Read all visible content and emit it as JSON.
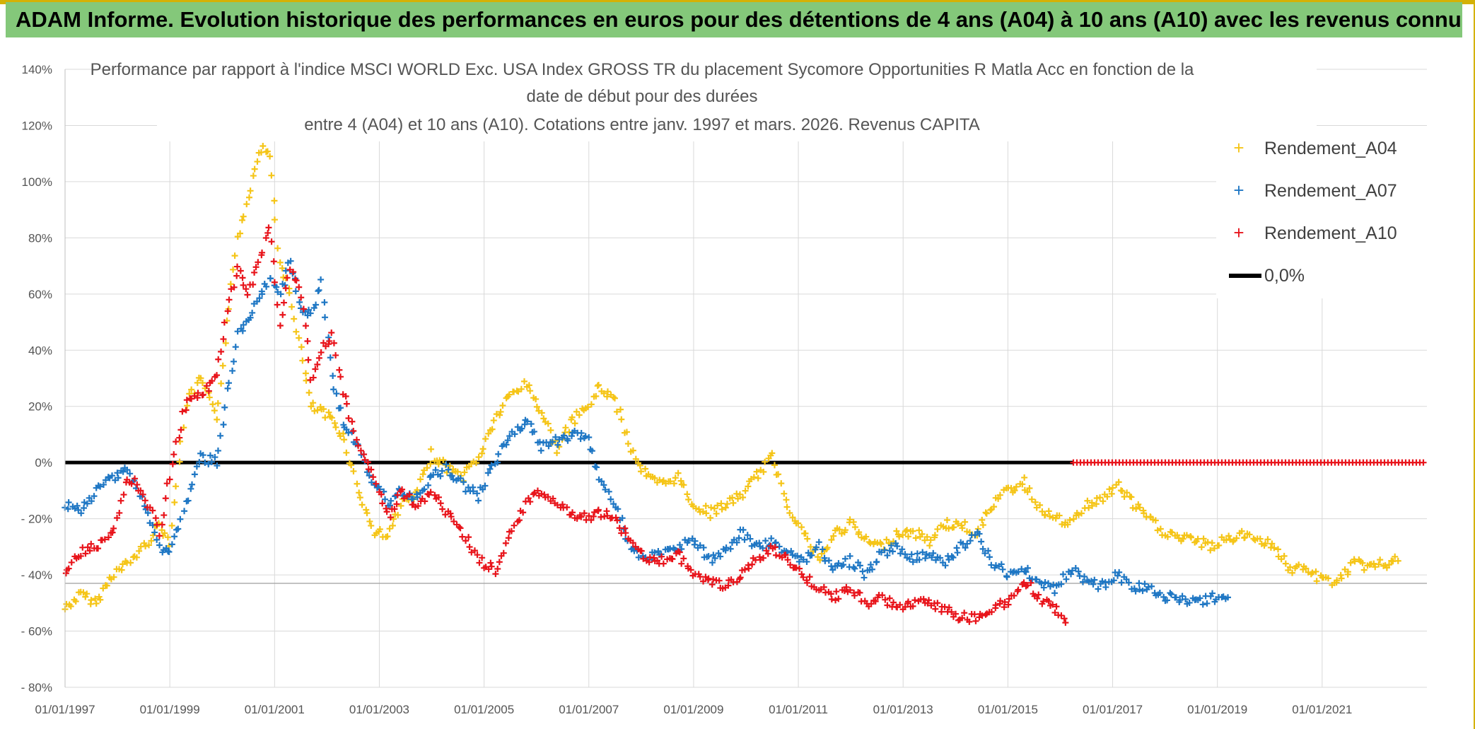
{
  "header": {
    "banner": "ADAM Informe. Evolution historique des performances en euros pour des détentions de 4 ans (A04) à 10 ans (A10) avec les revenus connus capitalisés"
  },
  "colors": {
    "banner_bg": "#84c87a",
    "a04": "#f5c518",
    "a07": "#1f77c4",
    "a10": "#e8141b",
    "zero": "#000000"
  },
  "chart_data": {
    "type": "scatter",
    "title_lines": [
      "Performance par rapport à l'indice MSCI WORLD Exc. USA Index GROSS TR  du placement Sycomore Opportunities R Matla Acc en fonction de la",
      "date de début pour des durées",
      "entre 4 (A04) et 10 ans (A10). Cotations entre janv. 1997 et mars. 2026. Revenus CAPITA"
    ],
    "ylim": [
      -80,
      140
    ],
    "y_ticks": [
      {
        "value": 140,
        "label": "140%"
      },
      {
        "value": 120,
        "label": "120%"
      },
      {
        "value": 100,
        "label": "100%"
      },
      {
        "value": 80,
        "label": "80%"
      },
      {
        "value": 60,
        "label": "60%"
      },
      {
        "value": 40,
        "label": "40%"
      },
      {
        "value": 20,
        "label": "20%"
      },
      {
        "value": 0,
        "label": "0%"
      },
      {
        "value": -20,
        "label": "- 20%"
      },
      {
        "value": -40,
        "label": "- 40%"
      },
      {
        "value": -60,
        "label": "- 60%"
      },
      {
        "value": -80,
        "label": "- 80%"
      }
    ],
    "xlim": [
      1997.0,
      2023.0
    ],
    "x_ticks": [
      {
        "value": 1997,
        "label": "01/01/1997"
      },
      {
        "value": 1999,
        "label": "01/01/1999"
      },
      {
        "value": 2001,
        "label": "01/01/2001"
      },
      {
        "value": 2003,
        "label": "01/01/2003"
      },
      {
        "value": 2005,
        "label": "01/01/2005"
      },
      {
        "value": 2007,
        "label": "01/01/2007"
      },
      {
        "value": 2009,
        "label": "01/01/2009"
      },
      {
        "value": 2011,
        "label": "01/01/2011"
      },
      {
        "value": 2013,
        "label": "01/01/2013"
      },
      {
        "value": 2015,
        "label": "01/01/2015"
      },
      {
        "value": 2017,
        "label": "01/01/2017"
      },
      {
        "value": 2019,
        "label": "01/01/2019"
      },
      {
        "value": 2021,
        "label": "01/01/2021"
      }
    ],
    "series": [
      {
        "name": "Rendement_A04",
        "marker": "+",
        "x": [
          1997.0,
          1997.3,
          1997.6,
          1997.9,
          1998.2,
          1998.5,
          1998.8,
          1999.0,
          1999.3,
          1999.6,
          1999.9,
          2000.1,
          2000.3,
          2000.5,
          2000.7,
          2000.9,
          2001.1,
          2001.3,
          2001.5,
          2001.7,
          2001.9,
          2002.1,
          2002.3,
          2002.6,
          2002.9,
          2003.2,
          2003.4,
          2003.7,
          2004.0,
          2004.3,
          2004.6,
          2004.9,
          2005.2,
          2005.5,
          2005.8,
          2006.1,
          2006.4,
          2006.7,
          2007.0,
          2007.2,
          2007.5,
          2007.8,
          2008.1,
          2008.4,
          2008.7,
          2009.0,
          2009.3,
          2009.6,
          2009.9,
          2010.2,
          2010.5,
          2010.8,
          2011.1,
          2011.4,
          2011.7,
          2012.0,
          2012.3,
          2012.6,
          2012.9,
          2013.2,
          2013.5,
          2013.8,
          2014.1,
          2014.4,
          2014.7,
          2015.0,
          2015.3,
          2015.6,
          2015.9,
          2016.2,
          2016.5,
          2016.8,
          2017.1,
          2017.4,
          2017.7,
          2018.0,
          2018.3,
          2018.6,
          2018.9,
          2019.2,
          2019.5,
          2019.8,
          2020.1,
          2020.4,
          2020.7,
          2021.0,
          2021.3,
          2021.6,
          2021.9,
          2022.2,
          2022.45
        ],
        "values": [
          -52,
          -47,
          -50,
          -40,
          -36,
          -30,
          -22,
          -28,
          20,
          30,
          15,
          50,
          80,
          95,
          112,
          110,
          70,
          60,
          40,
          20,
          18,
          15,
          10,
          -10,
          -25,
          -25,
          -15,
          -12,
          3,
          -2,
          -5,
          2,
          15,
          24,
          28,
          18,
          5,
          15,
          20,
          27,
          22,
          5,
          -5,
          -8,
          -5,
          -15,
          -18,
          -15,
          -12,
          -5,
          2,
          -15,
          -25,
          -35,
          -25,
          -22,
          -28,
          -30,
          -25,
          -25,
          -28,
          -22,
          -22,
          -25,
          -15,
          -10,
          -7,
          -16,
          -20,
          -22,
          -15,
          -13,
          -8,
          -15,
          -20,
          -25,
          -27,
          -28,
          -30,
          -27,
          -26,
          -27,
          -30,
          -38,
          -38,
          -42,
          -42,
          -36,
          -37,
          -36,
          -35
        ]
      },
      {
        "name": "Rendement_A07",
        "marker": "+",
        "x": [
          1997.0,
          1997.3,
          1997.6,
          1997.9,
          1998.2,
          1998.5,
          1998.8,
          1999.0,
          1999.3,
          1999.6,
          1999.9,
          2000.1,
          2000.3,
          2000.5,
          2000.7,
          2000.9,
          2001.1,
          2001.3,
          2001.5,
          2001.7,
          2001.9,
          2002.1,
          2002.3,
          2002.6,
          2002.9,
          2003.2,
          2003.4,
          2003.7,
          2004.0,
          2004.3,
          2004.6,
          2004.9,
          2005.2,
          2005.5,
          2005.8,
          2006.1,
          2006.4,
          2006.7,
          2007.0,
          2007.2,
          2007.5,
          2007.8,
          2008.1,
          2008.4,
          2008.7,
          2009.0,
          2009.3,
          2009.6,
          2009.9,
          2010.2,
          2010.5,
          2010.8,
          2011.1,
          2011.4,
          2011.7,
          2012.0,
          2012.3,
          2012.6,
          2012.9,
          2013.2,
          2013.5,
          2013.8,
          2014.1,
          2014.4,
          2014.7,
          2015.0,
          2015.3,
          2015.6,
          2015.9,
          2016.2,
          2016.5,
          2016.8,
          2017.1,
          2017.4,
          2017.7,
          2018.0,
          2018.3,
          2018.6,
          2018.9,
          2019.2
        ],
        "values": [
          -15,
          -18,
          -10,
          -5,
          -2,
          -15,
          -30,
          -32,
          -15,
          2,
          0,
          25,
          45,
          50,
          58,
          65,
          60,
          72,
          55,
          52,
          65,
          30,
          15,
          5,
          -8,
          -15,
          -10,
          -12,
          -5,
          -2,
          -8,
          -12,
          0,
          10,
          15,
          5,
          8,
          10,
          8,
          -5,
          -15,
          -30,
          -35,
          -32,
          -30,
          -28,
          -35,
          -32,
          -25,
          -30,
          -28,
          -32,
          -35,
          -30,
          -38,
          -35,
          -40,
          -32,
          -30,
          -35,
          -32,
          -35,
          -30,
          -25,
          -35,
          -40,
          -38,
          -42,
          -45,
          -38,
          -42,
          -44,
          -40,
          -44,
          -45,
          -48,
          -48,
          -50,
          -48,
          -48
        ]
      },
      {
        "name": "Rendement_A10",
        "marker": "+",
        "x": [
          1997.0,
          1997.3,
          1997.6,
          1997.9,
          1998.2,
          1998.5,
          1998.8,
          1999.0,
          1999.3,
          1999.6,
          1999.9,
          2000.1,
          2000.3,
          2000.5,
          2000.7,
          2000.9,
          2001.1,
          2001.3,
          2001.5,
          2001.7,
          2001.9,
          2002.1,
          2002.3,
          2002.6,
          2002.9,
          2003.2,
          2003.4,
          2003.7,
          2004.0,
          2004.3,
          2004.6,
          2004.9,
          2005.2,
          2005.5,
          2005.8,
          2006.1,
          2006.4,
          2006.7,
          2007.0,
          2007.2,
          2007.5,
          2007.8,
          2008.1,
          2008.4,
          2008.7,
          2009.0,
          2009.3,
          2009.6,
          2009.9,
          2010.2,
          2010.5,
          2010.8,
          2011.1,
          2011.4,
          2011.7,
          2012.0,
          2012.3,
          2012.6,
          2012.9,
          2013.2,
          2013.5,
          2013.8,
          2014.1,
          2014.4,
          2014.7,
          2015.0,
          2015.3,
          2015.6,
          2015.9,
          2016.1
        ],
        "values": [
          -38,
          -32,
          -30,
          -25,
          -5,
          -10,
          -25,
          -5,
          20,
          25,
          30,
          55,
          70,
          60,
          70,
          85,
          50,
          70,
          60,
          30,
          40,
          45,
          25,
          5,
          -5,
          -20,
          -10,
          -15,
          -10,
          -18,
          -25,
          -35,
          -38,
          -25,
          -15,
          -10,
          -15,
          -18,
          -20,
          -18,
          -20,
          -28,
          -35,
          -35,
          -32,
          -40,
          -42,
          -45,
          -40,
          -35,
          -30,
          -35,
          -40,
          -45,
          -48,
          -45,
          -50,
          -48,
          -52,
          -50,
          -50,
          -52,
          -55,
          -55,
          -52,
          -50,
          -42,
          -48,
          -52,
          -57
        ]
      },
      {
        "name": "Rendement_A10_zero_tail",
        "marker": "+",
        "x": [
          2016.25,
          2022.95
        ],
        "values": [
          0,
          0
        ]
      },
      {
        "name": "0,0%",
        "marker": "line",
        "x": [
          1997.0,
          2016.25
        ],
        "values": [
          0,
          0
        ]
      }
    ],
    "legend": [
      {
        "label": "Rendement_A04",
        "symbol": "+"
      },
      {
        "label": "Rendement_A07",
        "symbol": "+"
      },
      {
        "label": "Rendement_A10",
        "symbol": "+"
      },
      {
        "label": "0,0%",
        "symbol": "line"
      }
    ]
  }
}
